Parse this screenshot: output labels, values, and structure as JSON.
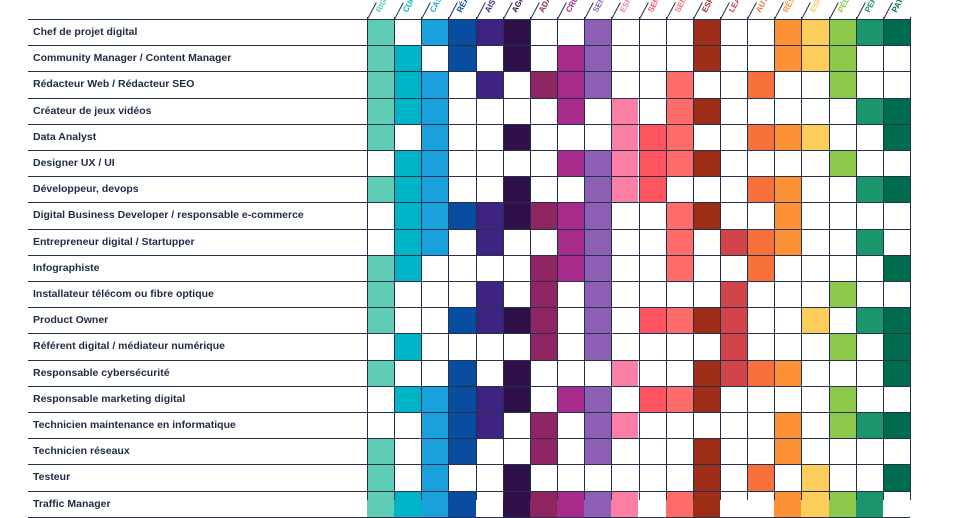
{
  "columns": [
    {
      "label": "RIG",
      "color": "#5fcdb6"
    },
    {
      "label": "CUR",
      "color": "#00b4c8"
    },
    {
      "label": "CAS",
      "color": "#1aa0dc"
    },
    {
      "label": "RÉA",
      "color": "#084da0"
    },
    {
      "label": "AIS",
      "color": "#3e2383"
    },
    {
      "label": "AGI",
      "color": "#2f1049"
    },
    {
      "label": "ADA",
      "color": "#8f2662"
    },
    {
      "label": "CRE",
      "color": "#a72b8a"
    },
    {
      "label": "SEN",
      "color": "#8c5fb5"
    },
    {
      "label": "ESP",
      "color": "#fb7fa4"
    },
    {
      "label": "SEN",
      "color": "#fe5560"
    },
    {
      "label": "SEN",
      "color": "#fe6b68"
    },
    {
      "label": "ESP",
      "color": "#9e2e18"
    },
    {
      "label": "LEA",
      "color": "#d14448"
    },
    {
      "label": "AUT",
      "color": "#f7703b"
    },
    {
      "label": "RÉS",
      "color": "#fc9235"
    },
    {
      "label": "ESP",
      "color": "#fdcd5c"
    },
    {
      "label": "PÉD",
      "color": "#8cc94a"
    },
    {
      "label": "PER",
      "color": "#1a956c"
    },
    {
      "label": "PAT",
      "color": "#006c4e"
    }
  ],
  "jobs": [
    {
      "title": "Chef de projet digital",
      "cells": [
        1,
        0,
        1,
        1,
        1,
        1,
        0,
        0,
        1,
        0,
        0,
        0,
        1,
        0,
        0,
        1,
        1,
        1,
        1,
        1
      ]
    },
    {
      "title": "Community Manager / Content Manager",
      "cells": [
        1,
        1,
        0,
        1,
        0,
        1,
        0,
        1,
        1,
        0,
        0,
        0,
        1,
        0,
        0,
        1,
        1,
        1,
        0,
        0
      ]
    },
    {
      "title": "Rédacteur Web / Rédacteur SEO",
      "cells": [
        1,
        1,
        1,
        0,
        1,
        0,
        1,
        1,
        1,
        0,
        0,
        1,
        0,
        0,
        1,
        0,
        0,
        1,
        0,
        0
      ]
    },
    {
      "title": "Créateur de jeux vidéos",
      "cells": [
        1,
        1,
        1,
        0,
        0,
        0,
        0,
        1,
        0,
        1,
        0,
        1,
        1,
        0,
        0,
        0,
        0,
        0,
        1,
        1
      ]
    },
    {
      "title": "Data Analyst",
      "cells": [
        1,
        0,
        1,
        0,
        0,
        1,
        0,
        0,
        0,
        1,
        1,
        1,
        0,
        0,
        1,
        1,
        1,
        0,
        0,
        1
      ]
    },
    {
      "title": "Designer UX / UI",
      "cells": [
        0,
        1,
        1,
        0,
        0,
        0,
        0,
        1,
        1,
        1,
        1,
        1,
        1,
        0,
        0,
        0,
        0,
        1,
        0,
        0
      ]
    },
    {
      "title": "Développeur, devops",
      "cells": [
        1,
        1,
        1,
        0,
        0,
        1,
        0,
        0,
        1,
        1,
        1,
        0,
        0,
        0,
        1,
        1,
        0,
        0,
        1,
        1
      ]
    },
    {
      "title": "Digital Business Developer / responsable e-commerce",
      "cells": [
        0,
        1,
        1,
        1,
        1,
        1,
        1,
        1,
        1,
        0,
        0,
        1,
        1,
        0,
        0,
        1,
        0,
        0,
        0,
        0
      ]
    },
    {
      "title": "Entrepreneur digital / Startupper",
      "cells": [
        0,
        1,
        1,
        0,
        1,
        0,
        0,
        1,
        1,
        0,
        0,
        1,
        0,
        1,
        1,
        1,
        0,
        0,
        1,
        0
      ]
    },
    {
      "title": "Infographiste",
      "cells": [
        1,
        1,
        0,
        0,
        0,
        0,
        1,
        1,
        1,
        0,
        0,
        1,
        0,
        0,
        1,
        0,
        0,
        0,
        0,
        1
      ]
    },
    {
      "title": "Installateur télécom ou  fibre optique",
      "cells": [
        1,
        0,
        0,
        0,
        1,
        0,
        1,
        0,
        1,
        0,
        0,
        0,
        0,
        1,
        0,
        0,
        0,
        1,
        0,
        0
      ]
    },
    {
      "title": "Product Owner",
      "cells": [
        1,
        0,
        0,
        1,
        1,
        1,
        1,
        0,
        1,
        0,
        1,
        1,
        1,
        1,
        0,
        0,
        1,
        0,
        1,
        1
      ]
    },
    {
      "title": "Référent digital / médiateur numérique",
      "cells": [
        0,
        1,
        0,
        0,
        0,
        0,
        1,
        0,
        1,
        0,
        0,
        0,
        0,
        1,
        0,
        0,
        0,
        1,
        0,
        1
      ]
    },
    {
      "title": "Responsable cybersécurité",
      "cells": [
        1,
        0,
        0,
        1,
        0,
        1,
        0,
        0,
        0,
        1,
        0,
        0,
        1,
        1,
        1,
        1,
        0,
        0,
        0,
        1
      ]
    },
    {
      "title": "Responsable marketing digital",
      "cells": [
        0,
        1,
        1,
        1,
        1,
        1,
        0,
        1,
        1,
        0,
        1,
        1,
        1,
        0,
        0,
        0,
        0,
        1,
        0,
        0
      ]
    },
    {
      "title": "Technicien maintenance en informatique",
      "cells": [
        0,
        0,
        1,
        1,
        1,
        0,
        1,
        0,
        1,
        1,
        0,
        0,
        0,
        0,
        0,
        1,
        0,
        1,
        1,
        1
      ]
    },
    {
      "title": "Technicien réseaux",
      "cells": [
        1,
        0,
        1,
        1,
        0,
        0,
        1,
        0,
        1,
        0,
        0,
        0,
        1,
        0,
        0,
        1,
        0,
        0,
        0,
        0
      ]
    },
    {
      "title": "Testeur",
      "cells": [
        1,
        0,
        1,
        0,
        0,
        1,
        0,
        0,
        0,
        0,
        0,
        0,
        1,
        0,
        1,
        0,
        1,
        0,
        0,
        1
      ]
    },
    {
      "title": "Traffic Manager",
      "cells": [
        1,
        1,
        1,
        1,
        0,
        1,
        1,
        1,
        1,
        1,
        0,
        1,
        1,
        0,
        0,
        1,
        1,
        1,
        1,
        0
      ]
    }
  ]
}
